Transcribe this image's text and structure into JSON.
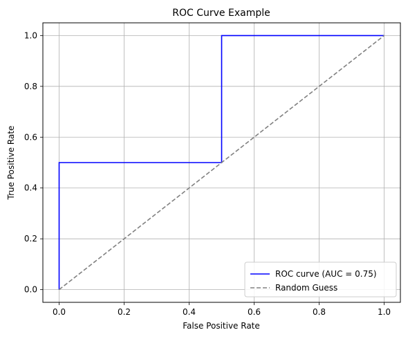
{
  "chart_data": {
    "type": "line",
    "title": "ROC Curve Example",
    "xlabel": "False Positive Rate",
    "ylabel": "True Positive Rate",
    "xlim": [
      -0.05,
      1.05
    ],
    "ylim": [
      -0.05,
      1.05
    ],
    "x_ticks": [
      0.0,
      0.2,
      0.4,
      0.6,
      0.8,
      1.0
    ],
    "y_ticks": [
      0.0,
      0.2,
      0.4,
      0.6,
      0.8,
      1.0
    ],
    "x_tick_labels": [
      "0.0",
      "0.2",
      "0.4",
      "0.6",
      "0.8",
      "1.0"
    ],
    "y_tick_labels": [
      "0.0",
      "0.2",
      "0.4",
      "0.6",
      "0.8",
      "1.0"
    ],
    "grid": true,
    "legend_position": "lower-right",
    "series": [
      {
        "name": "ROC curve (AUC = 0.75)",
        "color": "#0000ff",
        "style": "solid",
        "x": [
          0.0,
          0.0,
          0.5,
          0.5,
          1.0
        ],
        "y": [
          0.0,
          0.5,
          0.5,
          1.0,
          1.0
        ]
      },
      {
        "name": "Random Guess",
        "color": "#808080",
        "style": "dashed",
        "x": [
          0.0,
          1.0
        ],
        "y": [
          0.0,
          1.0
        ]
      }
    ]
  }
}
